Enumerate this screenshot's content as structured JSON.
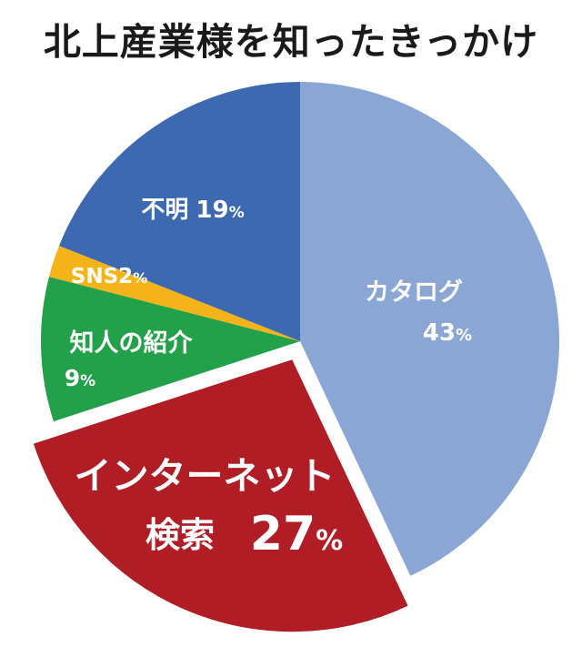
{
  "chart_data": {
    "type": "pie",
    "title": "北上産業様を知ったきっかけ",
    "slices": [
      {
        "label": "カタログ",
        "value": 43,
        "value_text": "43",
        "unit": "%",
        "color": "#8aa6d4",
        "text_color": "#ffffff"
      },
      {
        "label": "インターネット検索",
        "label_lines": [
          "インターネット",
          "検索"
        ],
        "value": 27,
        "value_text": "27",
        "unit": "%",
        "color": "#b11d24",
        "text_color": "#ffffff",
        "exploded": true
      },
      {
        "label": "知人の紹介",
        "value": 9,
        "value_text": "9",
        "unit": "%",
        "color": "#23a04a",
        "text_color": "#ffffff"
      },
      {
        "label": "SNS",
        "value": 2,
        "value_text": "2",
        "unit": "%",
        "color": "#f4b419",
        "text_color": "#ffffff"
      },
      {
        "label": "不明",
        "value": 19,
        "value_text": "19",
        "unit": "%",
        "color": "#3d69b1",
        "text_color": "#ffffff"
      }
    ],
    "start_angle": "12 o'clock",
    "direction": "clockwise",
    "legend": "none"
  }
}
